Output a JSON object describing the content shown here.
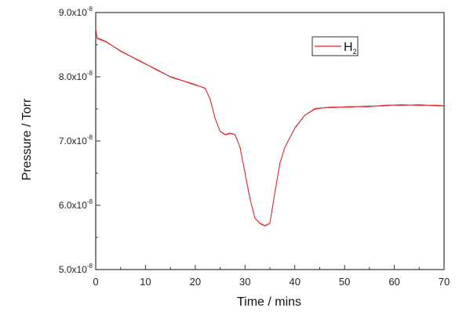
{
  "chart_data": {
    "type": "line",
    "xlabel": "Time / mins",
    "ylabel": "Pressure / Torr",
    "xlim": [
      0,
      70
    ],
    "ylim": [
      5e-08,
      9e-08
    ],
    "x_ticks": [
      "0",
      "10",
      "20",
      "30",
      "40",
      "50",
      "60",
      "70"
    ],
    "x_tick_values": [
      0,
      10,
      20,
      30,
      40,
      50,
      60,
      70
    ],
    "y_ticks": [
      {
        "value": 5e-08,
        "mantissa": "5.0x10",
        "exp": "-8"
      },
      {
        "value": 6e-08,
        "mantissa": "6.0x10",
        "exp": "-8"
      },
      {
        "value": 7e-08,
        "mantissa": "7.0x10",
        "exp": "-8"
      },
      {
        "value": 8e-08,
        "mantissa": "8.0x10",
        "exp": "-8"
      },
      {
        "value": 9e-08,
        "mantissa": "9.0x10",
        "exp": "-8"
      }
    ],
    "grid": false,
    "legend_position": "top-right",
    "series": [
      {
        "name_base": "H",
        "name_sub": "2",
        "color": "#d62728",
        "x": [
          0,
          0.3,
          2,
          5,
          10,
          15,
          19,
          21,
          22,
          23,
          24,
          25,
          26,
          27,
          28,
          29,
          30,
          31,
          32,
          33,
          34,
          35,
          36,
          37,
          38,
          40,
          42,
          44,
          46,
          50,
          55,
          60,
          65,
          70
        ],
        "y": [
          8.75e-08,
          8.6e-08,
          8.55e-08,
          8.4e-08,
          8.2e-08,
          8e-08,
          7.9e-08,
          7.85e-08,
          7.82e-08,
          7.65e-08,
          7.35e-08,
          7.15e-08,
          7.1e-08,
          7.12e-08,
          7.1e-08,
          6.9e-08,
          6.5e-08,
          6.1e-08,
          5.8e-08,
          5.72e-08,
          5.68e-08,
          5.72e-08,
          6.2e-08,
          6.65e-08,
          6.9e-08,
          7.2e-08,
          7.4e-08,
          7.5e-08,
          7.52e-08,
          7.53e-08,
          7.54e-08,
          7.56e-08,
          7.56e-08,
          7.55e-08
        ]
      }
    ]
  }
}
